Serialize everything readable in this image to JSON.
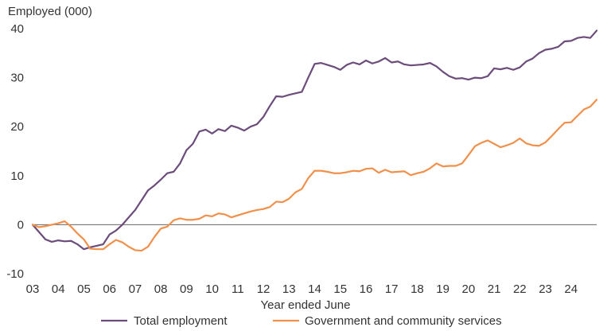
{
  "chart_data": {
    "type": "line",
    "title": "",
    "ylabel": "Employed (000)",
    "xlabel": "Year ended June",
    "ylim": [
      -10,
      40
    ],
    "yticks": [
      -10,
      0,
      10,
      20,
      30,
      40
    ],
    "ytick_labels": [
      "-10",
      "0",
      "10",
      "20",
      "30",
      "40"
    ],
    "xlim": [
      2003,
      2025
    ],
    "xtick_labels": [
      "03",
      "04",
      "05",
      "06",
      "07",
      "08",
      "09",
      "10",
      "11",
      "12",
      "13",
      "14",
      "15",
      "16",
      "17",
      "18",
      "19",
      "20",
      "21",
      "22",
      "23",
      "24"
    ],
    "zero_line": true,
    "grid": false,
    "legend_position": "bottom",
    "series": [
      {
        "name": "Total employment",
        "color": "#6b4c7a",
        "points": [
          [
            2003.0,
            0
          ],
          [
            2003.25,
            -1.5
          ],
          [
            2003.5,
            -3
          ],
          [
            2003.75,
            -3.5
          ],
          [
            2004.0,
            -3.2
          ],
          [
            2004.25,
            -3.4
          ],
          [
            2004.5,
            -3.3
          ],
          [
            2004.75,
            -4
          ],
          [
            2005.0,
            -5
          ],
          [
            2005.25,
            -4.6
          ],
          [
            2005.5,
            -4.3
          ],
          [
            2005.75,
            -4
          ],
          [
            2006.0,
            -2
          ],
          [
            2006.25,
            -1.2
          ],
          [
            2006.5,
            0
          ],
          [
            2006.75,
            1.5
          ],
          [
            2007.0,
            3
          ],
          [
            2007.25,
            5
          ],
          [
            2007.5,
            7
          ],
          [
            2007.75,
            8
          ],
          [
            2008.0,
            9.2
          ],
          [
            2008.25,
            10.5
          ],
          [
            2008.5,
            10.8
          ],
          [
            2008.75,
            12.5
          ],
          [
            2009.0,
            15.2
          ],
          [
            2009.25,
            16.5
          ],
          [
            2009.5,
            19
          ],
          [
            2009.75,
            19.4
          ],
          [
            2010.0,
            18.6
          ],
          [
            2010.25,
            19.5
          ],
          [
            2010.5,
            19.1
          ],
          [
            2010.75,
            20.2
          ],
          [
            2011.0,
            19.8
          ],
          [
            2011.25,
            19.2
          ],
          [
            2011.5,
            20
          ],
          [
            2011.75,
            20.5
          ],
          [
            2012.0,
            22
          ],
          [
            2012.25,
            24.2
          ],
          [
            2012.5,
            26.2
          ],
          [
            2012.75,
            26.1
          ],
          [
            2013.0,
            26.5
          ],
          [
            2013.25,
            26.8
          ],
          [
            2013.5,
            27.1
          ],
          [
            2013.75,
            30
          ],
          [
            2014.0,
            32.8
          ],
          [
            2014.25,
            33
          ],
          [
            2014.5,
            32.6
          ],
          [
            2014.75,
            32.2
          ],
          [
            2015.0,
            31.6
          ],
          [
            2015.25,
            32.6
          ],
          [
            2015.5,
            33.1
          ],
          [
            2015.75,
            32.7
          ],
          [
            2016.0,
            33.5
          ],
          [
            2016.25,
            32.9
          ],
          [
            2016.5,
            33.3
          ],
          [
            2016.75,
            34
          ],
          [
            2017.0,
            33.1
          ],
          [
            2017.25,
            33.3
          ],
          [
            2017.5,
            32.7
          ],
          [
            2017.75,
            32.5
          ],
          [
            2018.0,
            32.6
          ],
          [
            2018.25,
            32.7
          ],
          [
            2018.5,
            33
          ],
          [
            2018.75,
            32.3
          ],
          [
            2019.0,
            31.2
          ],
          [
            2019.25,
            30.3
          ],
          [
            2019.5,
            29.8
          ],
          [
            2019.75,
            29.9
          ],
          [
            2020.0,
            29.6
          ],
          [
            2020.25,
            30
          ],
          [
            2020.5,
            29.9
          ],
          [
            2020.75,
            30.3
          ],
          [
            2021.0,
            31.9
          ],
          [
            2021.25,
            31.7
          ],
          [
            2021.5,
            32
          ],
          [
            2021.75,
            31.6
          ],
          [
            2022.0,
            32.1
          ],
          [
            2022.25,
            33.3
          ],
          [
            2022.5,
            33.9
          ],
          [
            2022.75,
            35
          ],
          [
            2023.0,
            35.7
          ],
          [
            2023.25,
            35.9
          ],
          [
            2023.5,
            36.3
          ],
          [
            2023.75,
            37.4
          ],
          [
            2024.0,
            37.5
          ],
          [
            2024.25,
            38.1
          ],
          [
            2024.5,
            38.3
          ],
          [
            2024.75,
            38.1
          ],
          [
            2025.0,
            39.6
          ]
        ]
      },
      {
        "name": "Government and community services",
        "color": "#f0904a",
        "points": [
          [
            2003.0,
            0
          ],
          [
            2003.25,
            -0.5
          ],
          [
            2003.5,
            -0.3
          ],
          [
            2003.75,
            0
          ],
          [
            2004.0,
            0.3
          ],
          [
            2004.25,
            0.7
          ],
          [
            2004.5,
            -0.4
          ],
          [
            2004.75,
            -1.8
          ],
          [
            2005.0,
            -3
          ],
          [
            2005.25,
            -4.9
          ],
          [
            2005.5,
            -5
          ],
          [
            2005.75,
            -5
          ],
          [
            2006.0,
            -4
          ],
          [
            2006.25,
            -3.1
          ],
          [
            2006.5,
            -3.6
          ],
          [
            2006.75,
            -4.5
          ],
          [
            2007.0,
            -5.2
          ],
          [
            2007.25,
            -5.3
          ],
          [
            2007.5,
            -4.5
          ],
          [
            2007.75,
            -2.5
          ],
          [
            2008.0,
            -0.8
          ],
          [
            2008.25,
            -0.4
          ],
          [
            2008.5,
            0.9
          ],
          [
            2008.75,
            1.3
          ],
          [
            2009.0,
            1.0
          ],
          [
            2009.25,
            1.0
          ],
          [
            2009.5,
            1.2
          ],
          [
            2009.75,
            1.9
          ],
          [
            2010.0,
            1.7
          ],
          [
            2010.25,
            2.3
          ],
          [
            2010.5,
            2.1
          ],
          [
            2010.75,
            1.5
          ],
          [
            2011.0,
            1.9
          ],
          [
            2011.25,
            2.3
          ],
          [
            2011.5,
            2.7
          ],
          [
            2011.75,
            3
          ],
          [
            2012.0,
            3.2
          ],
          [
            2012.25,
            3.6
          ],
          [
            2012.5,
            4.7
          ],
          [
            2012.75,
            4.6
          ],
          [
            2013.0,
            5.3
          ],
          [
            2013.25,
            6.6
          ],
          [
            2013.5,
            7.3
          ],
          [
            2013.75,
            9.5
          ],
          [
            2014.0,
            11
          ],
          [
            2014.25,
            11
          ],
          [
            2014.5,
            10.8
          ],
          [
            2014.75,
            10.5
          ],
          [
            2015.0,
            10.5
          ],
          [
            2015.25,
            10.7
          ],
          [
            2015.5,
            11
          ],
          [
            2015.75,
            10.9
          ],
          [
            2016.0,
            11.4
          ],
          [
            2016.25,
            11.5
          ],
          [
            2016.5,
            10.6
          ],
          [
            2016.75,
            11.2
          ],
          [
            2017.0,
            10.7
          ],
          [
            2017.25,
            10.8
          ],
          [
            2017.5,
            10.9
          ],
          [
            2017.75,
            10.1
          ],
          [
            2018.0,
            10.5
          ],
          [
            2018.25,
            10.8
          ],
          [
            2018.5,
            11.5
          ],
          [
            2018.75,
            12.5
          ],
          [
            2019.0,
            11.9
          ],
          [
            2019.25,
            12
          ],
          [
            2019.5,
            12
          ],
          [
            2019.75,
            12.5
          ],
          [
            2020.0,
            14.2
          ],
          [
            2020.25,
            16
          ],
          [
            2020.5,
            16.7
          ],
          [
            2020.75,
            17.2
          ],
          [
            2021.0,
            16.5
          ],
          [
            2021.25,
            15.8
          ],
          [
            2021.5,
            16.2
          ],
          [
            2021.75,
            16.7
          ],
          [
            2022.0,
            17.6
          ],
          [
            2022.25,
            16.6
          ],
          [
            2022.5,
            16.2
          ],
          [
            2022.75,
            16.1
          ],
          [
            2023.0,
            16.8
          ],
          [
            2023.25,
            18.1
          ],
          [
            2023.5,
            19.5
          ],
          [
            2023.75,
            20.8
          ],
          [
            2024.0,
            20.9
          ],
          [
            2024.25,
            22.2
          ],
          [
            2024.5,
            23.5
          ],
          [
            2024.75,
            24.1
          ],
          [
            2025.0,
            25.5
          ]
        ]
      }
    ]
  },
  "colors": {
    "axis": "#666666",
    "text": "#333333"
  }
}
